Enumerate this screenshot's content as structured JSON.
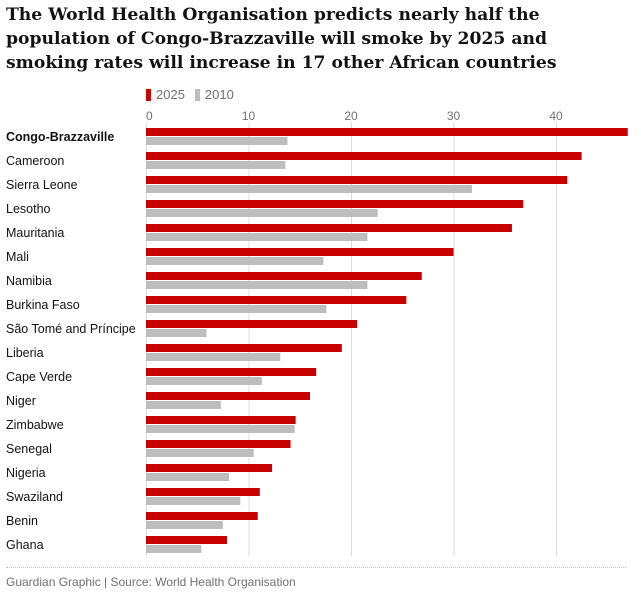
{
  "title": "The World Health Organisation predicts nearly half the population of Congo-Brazzaville will smoke by 2025 and smoking rates will increase in 17 other African countries",
  "source": "Guardian Graphic | Source: World Health Organisation",
  "chart_data": {
    "type": "bar",
    "orientation": "horizontal",
    "xlim": [
      0,
      47
    ],
    "xticks": [
      0,
      10,
      20,
      30,
      40
    ],
    "grid": true,
    "legend": "top-left",
    "categories": [
      "Congo-Brazzaville",
      "Cameroon",
      "Sierra Leone",
      "Lesotho",
      "Mauritania",
      "Mali",
      "Namibia",
      "Burkina Faso",
      "São Tomé and Príncipe",
      "Liberia",
      "Cape Verde",
      "Niger",
      "Zimbabwe",
      "Senegal",
      "Nigeria",
      "Swaziland",
      "Benin",
      "Ghana"
    ],
    "highlight": "Congo-Brazzaville",
    "series": [
      {
        "name": "2025",
        "color": "#c70000",
        "values": [
          47.0,
          42.5,
          41.1,
          36.8,
          35.7,
          30.0,
          26.9,
          25.4,
          20.6,
          19.1,
          16.6,
          16.0,
          14.6,
          14.1,
          12.3,
          11.1,
          10.9,
          7.9
        ]
      },
      {
        "name": "2010",
        "color": "#bdbdbd",
        "values": [
          13.8,
          13.6,
          31.8,
          22.6,
          21.6,
          17.3,
          21.6,
          17.6,
          5.9,
          13.1,
          11.3,
          7.3,
          14.5,
          10.5,
          8.1,
          9.2,
          7.5,
          5.4
        ]
      }
    ]
  }
}
